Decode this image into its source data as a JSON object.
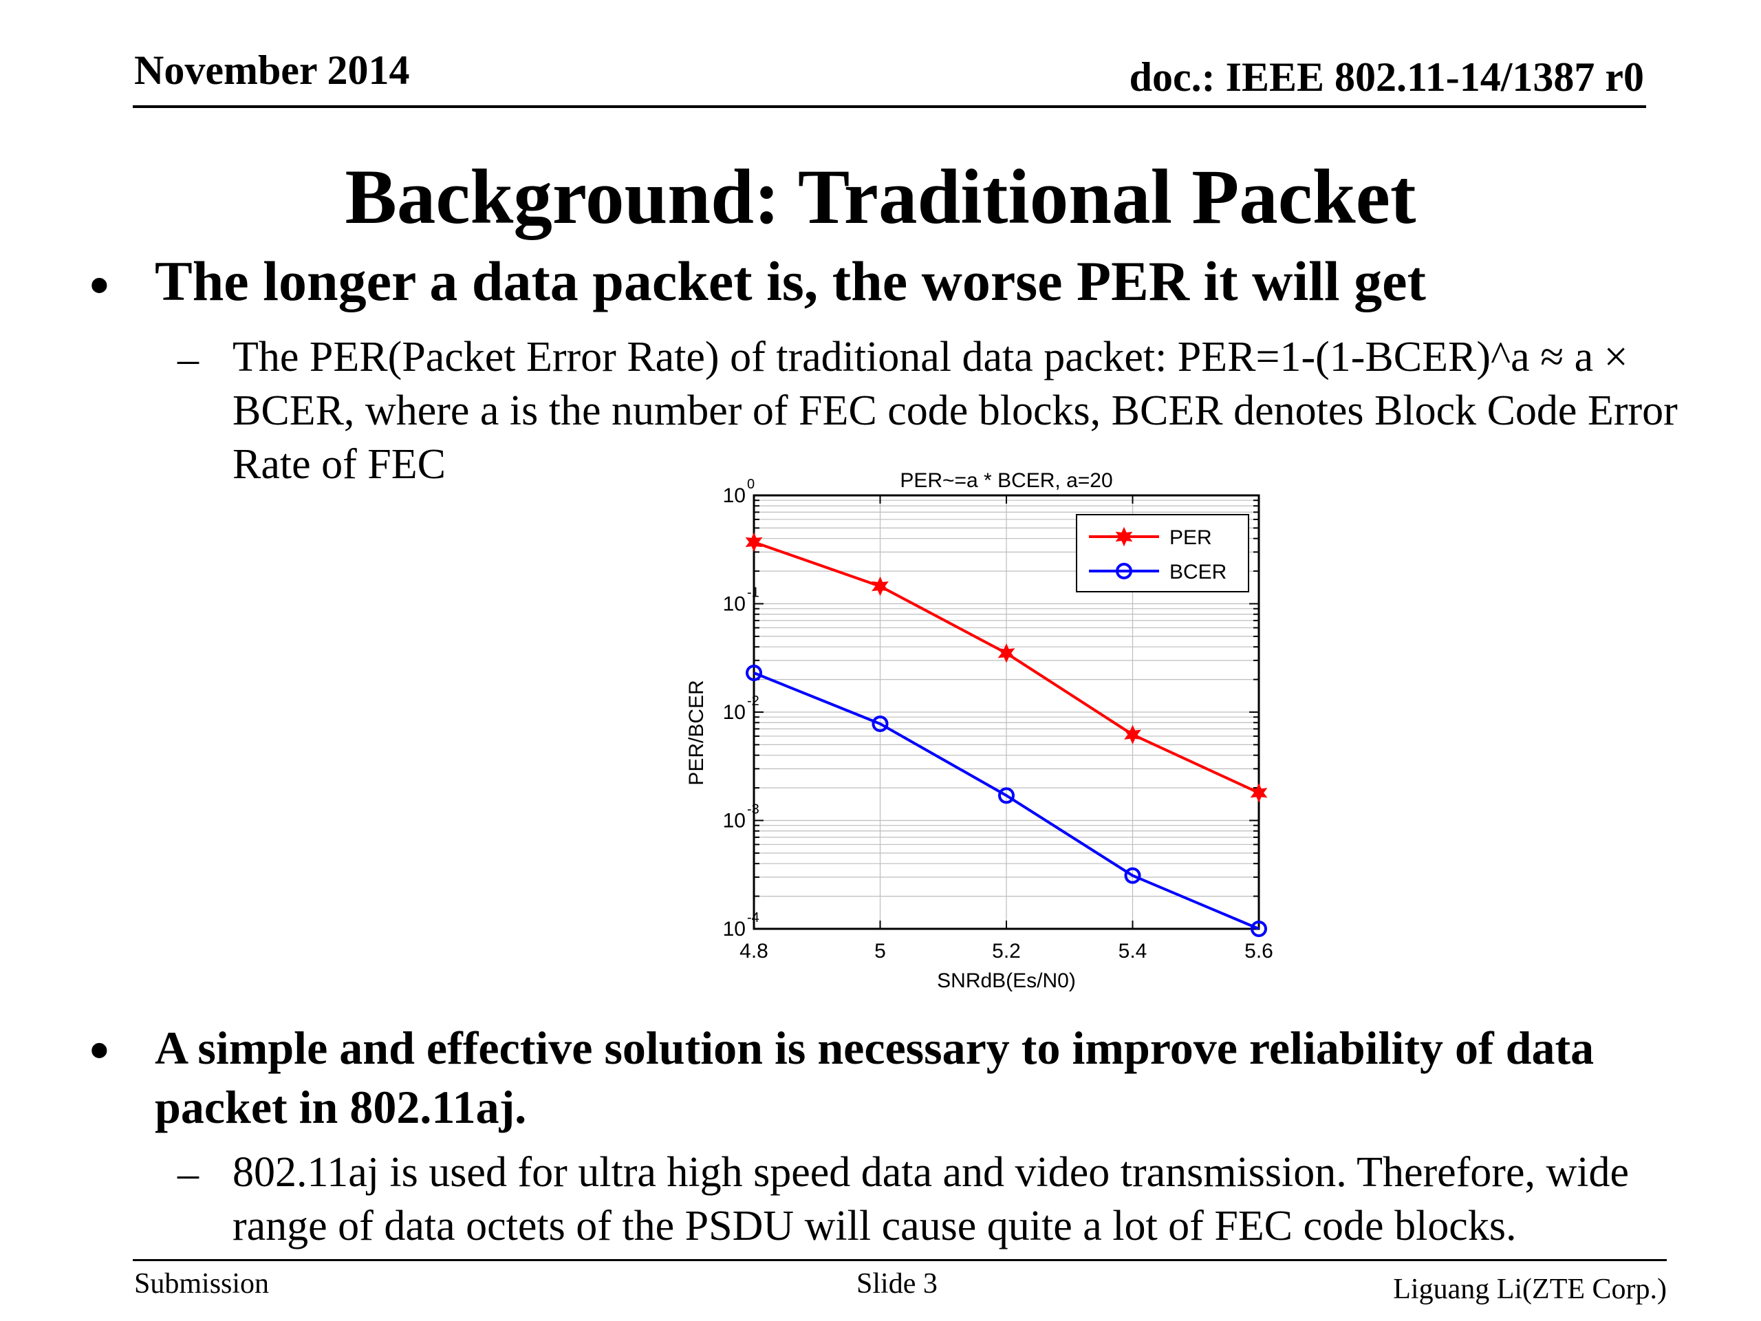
{
  "header": {
    "date": "November 2014",
    "doc": "doc.: IEEE 802.11-14/1387 r0"
  },
  "title": "Background: Traditional Packet",
  "bullets": [
    {
      "bullet": "•",
      "text": "The longer a data packet is, the worse PER it will get",
      "sub": {
        "dash": "–",
        "text": "The PER(Packet Error Rate) of traditional data packet: PER=1-(1-BCER)^a ≈ a × BCER, where a is the number of FEC code blocks, BCER denotes Block Code Error Rate of FEC"
      }
    },
    {
      "bullet": "•",
      "text": "A simple and effective solution is necessary to improve reliability of data packet in 802.11aj.",
      "sub": {
        "dash": "–",
        "text": "802.11aj is used for ultra high speed data and video transmission. Therefore, wide range of data octets of the PSDU will cause quite a lot of FEC code blocks."
      }
    }
  ],
  "footer": {
    "left": "Submission",
    "center": "Slide 3",
    "right": "Liguang Li(ZTE Corp.)"
  },
  "chart_data": {
    "type": "line",
    "title": "PER~=a * BCER, a=20",
    "xlabel": "SNRdB(Es/N0)",
    "ylabel": "PER/BCER",
    "xlim": [
      4.8,
      5.6
    ],
    "ylim": [
      0.0001,
      1
    ],
    "yscale": "log",
    "grid": true,
    "legend_position": "top-right",
    "x_ticks": [
      "4.8",
      "5",
      "5.2",
      "5.4",
      "5.6"
    ],
    "y_ticks": [
      {
        "base": "10",
        "exp": "0"
      },
      {
        "base": "10",
        "exp": "-1"
      },
      {
        "base": "10",
        "exp": "-2"
      },
      {
        "base": "10",
        "exp": "-3"
      },
      {
        "base": "10",
        "exp": "-4"
      }
    ],
    "x": [
      4.8,
      5.0,
      5.2,
      5.4,
      5.6
    ],
    "series": [
      {
        "name": "PER",
        "color": "#ff0000",
        "marker": "star",
        "values": [
          0.37,
          0.145,
          0.035,
          0.0062,
          0.0018
        ]
      },
      {
        "name": "BCER",
        "color": "#0000ff",
        "marker": "circle",
        "values": [
          0.023,
          0.0078,
          0.0017,
          0.00031,
          0.0001
        ]
      }
    ]
  }
}
